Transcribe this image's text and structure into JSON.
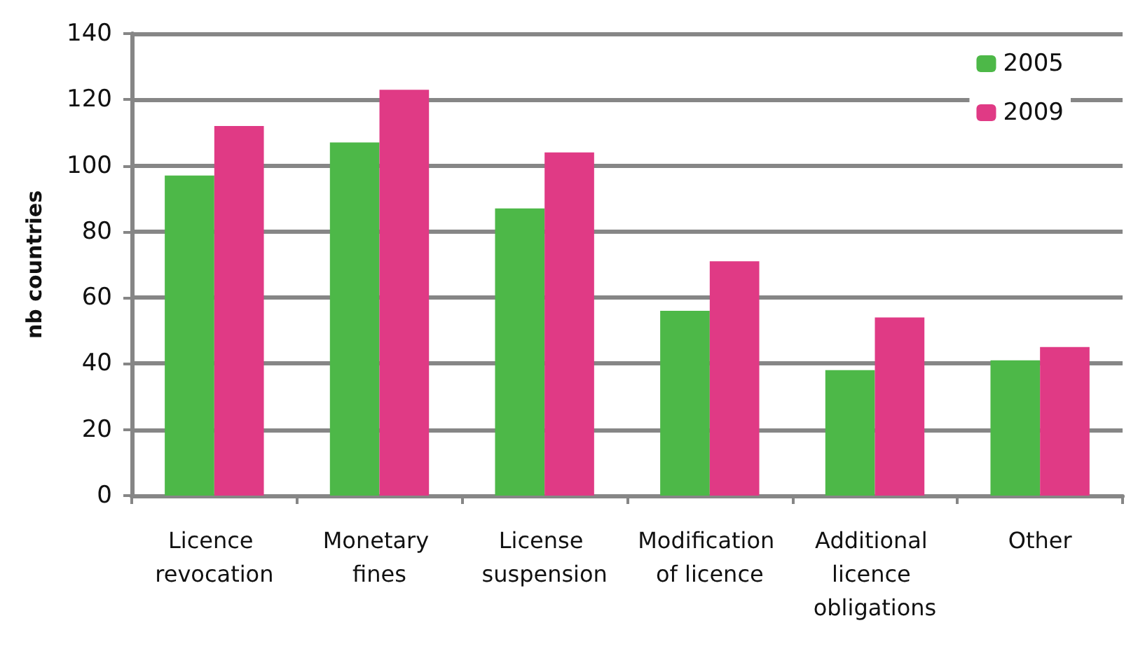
{
  "chart_data": {
    "type": "bar",
    "ylabel": "nb countries",
    "categories": [
      "Licence revocation",
      "Monetary fines",
      "License suspension",
      "Modification of licence",
      "Additional licence obligations",
      "Other"
    ],
    "series": [
      {
        "name": "2005",
        "color": "#4db848",
        "values": [
          97,
          107,
          87,
          56,
          38,
          41
        ]
      },
      {
        "name": "2009",
        "color": "#e03a85",
        "values": [
          112,
          123,
          104,
          71,
          54,
          45
        ]
      }
    ],
    "ylim": [
      0,
      140
    ],
    "yticks": [
      0,
      20,
      40,
      60,
      80,
      100,
      120,
      140
    ],
    "grid": "y",
    "legend": "top right"
  }
}
